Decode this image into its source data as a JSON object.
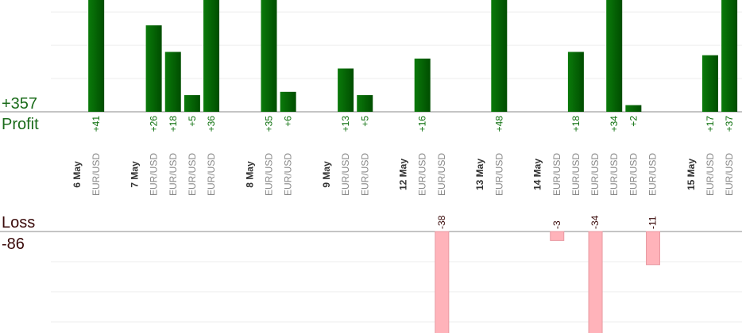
{
  "chart_data": {
    "type": "bar",
    "profit": {
      "name": "Profit",
      "total": "+357",
      "color": "#0a6e0a",
      "ylim": [
        0,
        33.6
      ],
      "yticks": [
        0,
        10,
        20,
        30
      ]
    },
    "loss": {
      "name": "Loss",
      "total": "-86",
      "color": "#ffb3ba",
      "ylim": [
        0,
        -30
      ],
      "yticks": [
        0,
        -10,
        -20,
        -30
      ]
    },
    "days": [
      {
        "date": "6 May",
        "trades": [
          {
            "pair": "EUR/USD",
            "value": 41,
            "label": "+41"
          }
        ]
      },
      {
        "date": "7 May",
        "trades": [
          {
            "pair": "EUR/USD",
            "value": 26,
            "label": "+26"
          },
          {
            "pair": "EUR/USD",
            "value": 18,
            "label": "+18"
          },
          {
            "pair": "EUR/USD",
            "value": 5,
            "label": "+5"
          },
          {
            "pair": "EUR/USD",
            "value": 36,
            "label": "+36"
          }
        ]
      },
      {
        "date": "8 May",
        "trades": [
          {
            "pair": "EUR/USD",
            "value": 35,
            "label": "+35"
          },
          {
            "pair": "EUR/USD",
            "value": 6,
            "label": "+6"
          }
        ]
      },
      {
        "date": "9 May",
        "trades": [
          {
            "pair": "EUR/USD",
            "value": 13,
            "label": "+13"
          },
          {
            "pair": "EUR/USD",
            "value": 5,
            "label": "+5"
          }
        ]
      },
      {
        "date": "12 May",
        "trades": [
          {
            "pair": "EUR/USD",
            "value": 16,
            "label": "+16"
          },
          {
            "pair": "EUR/USD",
            "value": -38,
            "label": "-38"
          }
        ]
      },
      {
        "date": "13 May",
        "trades": [
          {
            "pair": "EUR/USD",
            "value": 48,
            "label": "+48"
          }
        ]
      },
      {
        "date": "14 May",
        "trades": [
          {
            "pair": "EUR/USD",
            "value": -3,
            "label": "-3"
          },
          {
            "pair": "EUR/USD",
            "value": 18,
            "label": "+18"
          },
          {
            "pair": "EUR/USD",
            "value": -34,
            "label": "-34"
          },
          {
            "pair": "EUR/USD",
            "value": 34,
            "label": "+34"
          },
          {
            "pair": "EUR/USD",
            "value": 2,
            "label": "+2"
          },
          {
            "pair": "EUR/USD",
            "value": -11,
            "label": "-11"
          }
        ]
      },
      {
        "date": "15 May",
        "trades": [
          {
            "pair": "EUR/USD",
            "value": 17,
            "label": "+17"
          },
          {
            "pair": "EUR/USD",
            "value": 37,
            "label": "+37"
          }
        ]
      }
    ]
  }
}
